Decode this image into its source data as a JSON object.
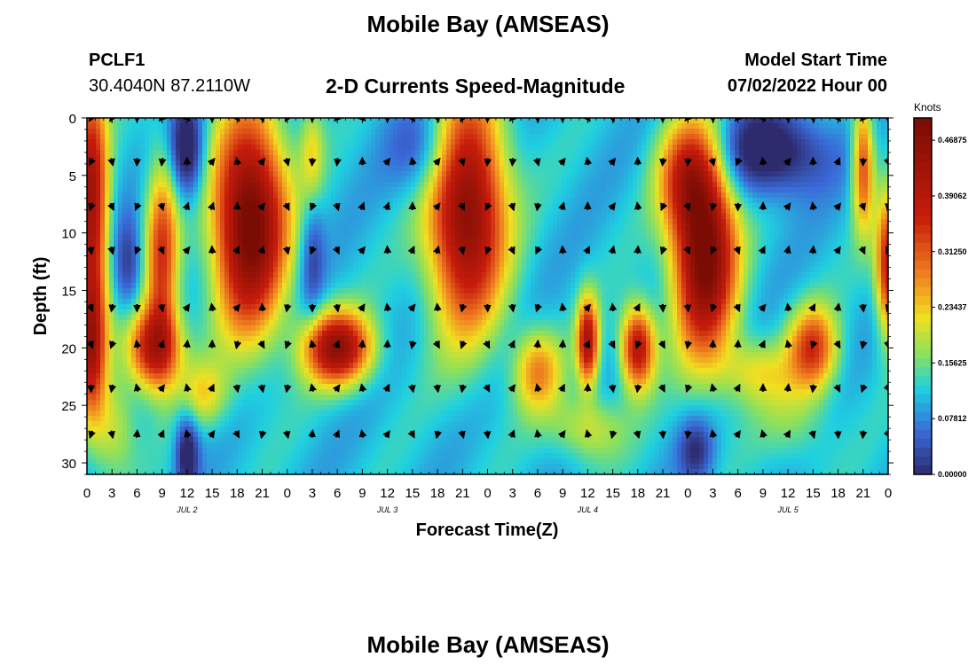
{
  "header": {
    "title": "Mobile Bay (AMSEAS)",
    "station_id": "PCLF1",
    "coords": "30.4040N  87.2110W",
    "subtitle": "2-D Currents Speed-Magnitude",
    "model_start_label": "Model Start Time",
    "model_start_value": "07/02/2022 Hour 00"
  },
  "footer": {
    "title_repeat": "Mobile Bay (AMSEAS)"
  },
  "chart_data": {
    "type": "heatmap",
    "title": "2-D Currents Speed-Magnitude",
    "xlabel": "Forecast Time(Z)",
    "ylabel": "Depth (ft)",
    "x_range_hours": [
      0,
      96
    ],
    "y_range_ft": [
      0,
      31
    ],
    "x_ticks": [
      "0",
      "3",
      "6",
      "9",
      "12",
      "15",
      "18",
      "21",
      "0",
      "3",
      "6",
      "9",
      "12",
      "15",
      "18",
      "21",
      "0",
      "3",
      "6",
      "9",
      "12",
      "15",
      "18",
      "21",
      "0",
      "3",
      "6",
      "9",
      "12",
      "15",
      "18",
      "21",
      "0"
    ],
    "y_ticks": [
      "0",
      "5",
      "10",
      "15",
      "20",
      "25",
      "30"
    ],
    "y_tick_values": [
      0,
      5,
      10,
      15,
      20,
      25,
      30
    ],
    "day_labels": [
      "JUL 2",
      "JUL 3",
      "JUL 4",
      "JUL 5"
    ],
    "day_label_hours": [
      12,
      36,
      60,
      84
    ],
    "colorbar": {
      "unit": "Knots",
      "ticks": [
        "0.46875",
        "0.39062",
        "0.31250",
        "0.23437",
        "0.15625",
        "0.07812",
        "0.00000"
      ],
      "range": [
        0,
        0.5
      ]
    },
    "depth_levels_ft": [
      0,
      3.8,
      7.7,
      11.5,
      16.5,
      19.7,
      23.5,
      27.5
    ],
    "vector_hours": [
      0.5,
      3,
      6,
      9,
      12,
      15,
      18,
      21,
      24,
      27,
      30,
      33,
      36,
      39,
      42,
      45,
      48,
      51,
      54,
      57,
      60,
      63,
      66,
      69,
      72,
      75,
      78,
      81,
      84,
      87,
      90,
      93,
      96
    ],
    "sampled_speeds": [
      {
        "hour": 1,
        "depth_ft": 2,
        "knots": 0.44
      },
      {
        "hour": 12,
        "depth_ft": 3,
        "knots": 0.02
      },
      {
        "hour": 20,
        "depth_ft": 8,
        "knots": 0.47
      },
      {
        "hour": 45,
        "depth_ft": 10,
        "knots": 0.42
      },
      {
        "hour": 74,
        "depth_ft": 13,
        "knots": 0.47
      },
      {
        "hour": 85,
        "depth_ft": 3,
        "knots": 0.01
      },
      {
        "hour": 7,
        "depth_ft": 20,
        "knots": 0.4
      },
      {
        "hour": 30,
        "depth_ft": 20,
        "knots": 0.44
      },
      {
        "hour": 12,
        "depth_ft": 29,
        "knots": 0.01
      }
    ],
    "colors": {
      "low": "#2e2a6e",
      "blue": "#3a6ad8",
      "cyan": "#1fd0e0",
      "green": "#8fe05a",
      "yellow": "#f0e020",
      "orange": "#f08020",
      "red": "#c81c0c",
      "high": "#7a0c04"
    }
  }
}
